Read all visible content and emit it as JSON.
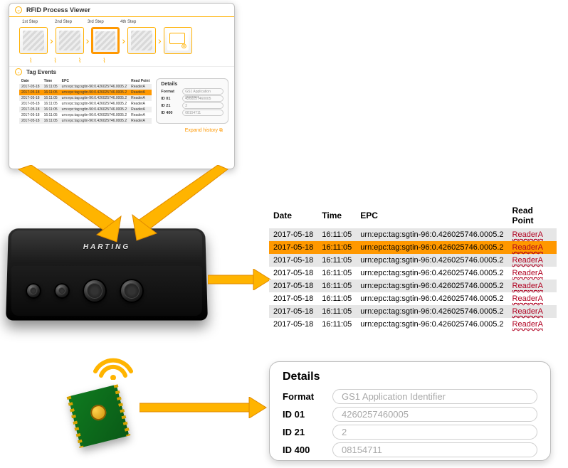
{
  "colors": {
    "accent": "#ff9800",
    "arrow_fill": "#ffb400",
    "arrow_stroke": "#e08a00",
    "zebra": "#e6e6e6",
    "read_point": "#b00020",
    "pill_border": "#cfcfcf",
    "pill_text": "#a8a8a8",
    "card_border": "#bcbcbc",
    "pcb": "#0f7a1f"
  },
  "app": {
    "title": "RFID Process Viewer",
    "steps": [
      "1st Step",
      "2nd Step",
      "3rd Step",
      "4th Step"
    ],
    "active_step_index": 2,
    "tag_events_label": "Tag Events",
    "mini_table": {
      "columns": [
        "Date",
        "Time",
        "EPC",
        "Read Point"
      ]
    },
    "mini_details": {
      "title": "Details",
      "rows": [
        {
          "k": "Format",
          "v": "GS1 Application Identifier"
        },
        {
          "k": "ID 01",
          "v": "4260257460005"
        },
        {
          "k": "ID 21",
          "v": "2"
        },
        {
          "k": "ID 400",
          "v": "08154711"
        }
      ]
    },
    "expand_history": "Expand history"
  },
  "device": {
    "brand": "HARTING"
  },
  "events": {
    "columns": [
      "Date",
      "Time",
      "EPC",
      "Read Point"
    ],
    "highlight_index": 1,
    "rows": [
      {
        "date": "2017-05-18",
        "time": "16:11:05",
        "epc": "urn:epc:tag:sgtin-96:0.426025746.0005.2",
        "rp": "ReaderA",
        "zebra": true
      },
      {
        "date": "2017-05-18",
        "time": "16:11:05",
        "epc": "urn:epc:tag:sgtin-96:0.426025746.0005.2",
        "rp": "ReaderA",
        "zebra": false
      },
      {
        "date": "2017-05-18",
        "time": "16:11:05",
        "epc": "urn:epc:tag:sgtin-96:0.426025746.0005.2",
        "rp": "ReaderA",
        "zebra": true
      },
      {
        "date": "2017-05-18",
        "time": "16:11:05",
        "epc": "urn:epc:tag:sgtin-96:0.426025746.0005.2",
        "rp": "ReaderA",
        "zebra": false
      },
      {
        "date": "2017-05-18",
        "time": "16:11:05",
        "epc": "urn:epc:tag:sgtin-96:0.426025746.0005.2",
        "rp": "ReaderA",
        "zebra": true
      },
      {
        "date": "2017-05-18",
        "time": "16:11:05",
        "epc": "urn:epc:tag:sgtin-96:0.426025746.0005.2",
        "rp": "ReaderA",
        "zebra": false
      },
      {
        "date": "2017-05-18",
        "time": "16:11:05",
        "epc": "urn:epc:tag:sgtin-96:0.426025746.0005.2",
        "rp": "ReaderA",
        "zebra": true
      },
      {
        "date": "2017-05-18",
        "time": "16:11:05",
        "epc": "urn:epc:tag:sgtin-96:0.426025746.0005.2",
        "rp": "ReaderA",
        "zebra": false
      }
    ]
  },
  "details": {
    "title": "Details",
    "rows": [
      {
        "k": "Format",
        "v": "GS1 Application Identifier"
      },
      {
        "k": "ID 01",
        "v": "4260257460005"
      },
      {
        "k": "ID 21",
        "v": "2"
      },
      {
        "k": "ID 400",
        "v": "08154711"
      }
    ]
  }
}
